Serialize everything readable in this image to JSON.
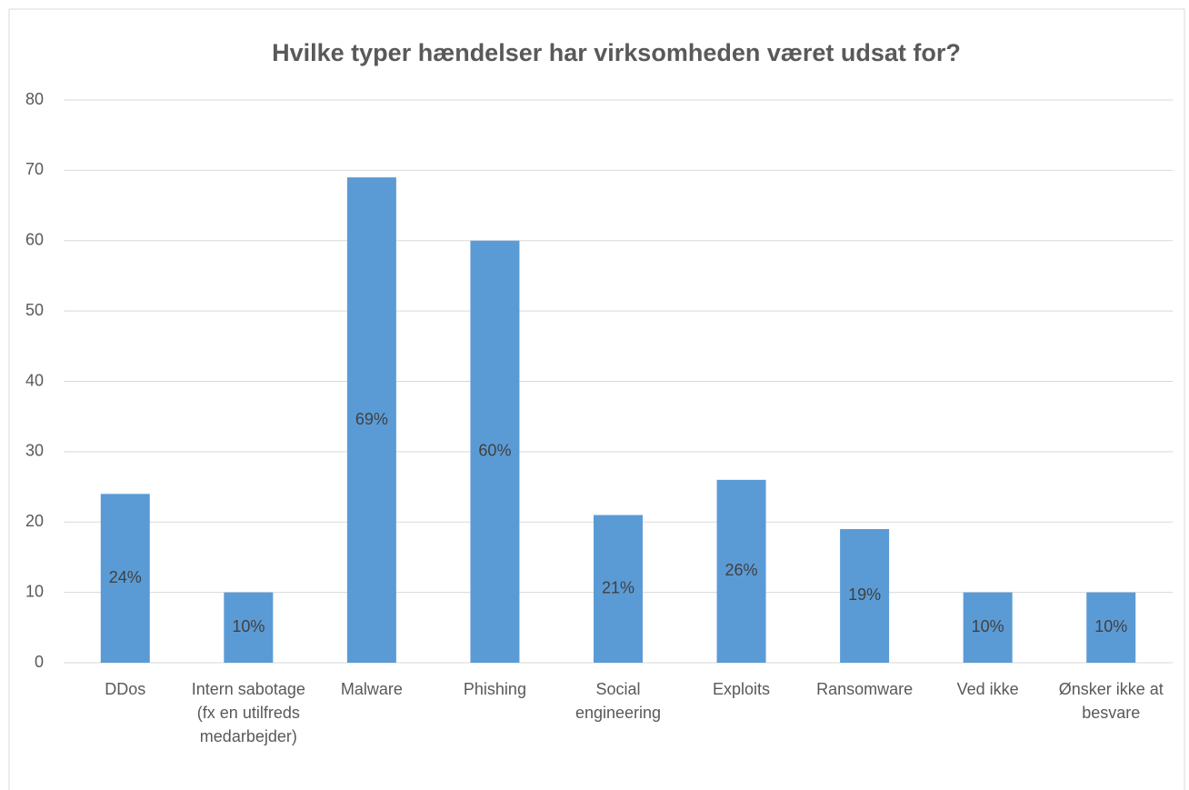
{
  "chart_data": {
    "type": "bar",
    "title": "Hvilke typer hændelser har virksomheden været udsat for?",
    "categories": [
      "DDos",
      "Intern sabotage (fx en utilfreds medarbejder)",
      "Malware",
      "Phishing",
      "Social engineering",
      "Exploits",
      "Ransomware",
      "Ved ikke",
      "Ønsker ikke at besvare"
    ],
    "values": [
      24,
      10,
      69,
      60,
      21,
      26,
      19,
      10,
      10
    ],
    "value_labels": [
      "24%",
      "10%",
      "69%",
      "60%",
      "21%",
      "26%",
      "19%",
      "10%",
      "10%"
    ],
    "color": "#5b9bd5",
    "ylim": [
      0,
      80
    ],
    "yticks": [
      0,
      10,
      20,
      30,
      40,
      50,
      60,
      70,
      80
    ],
    "grid": true
  }
}
